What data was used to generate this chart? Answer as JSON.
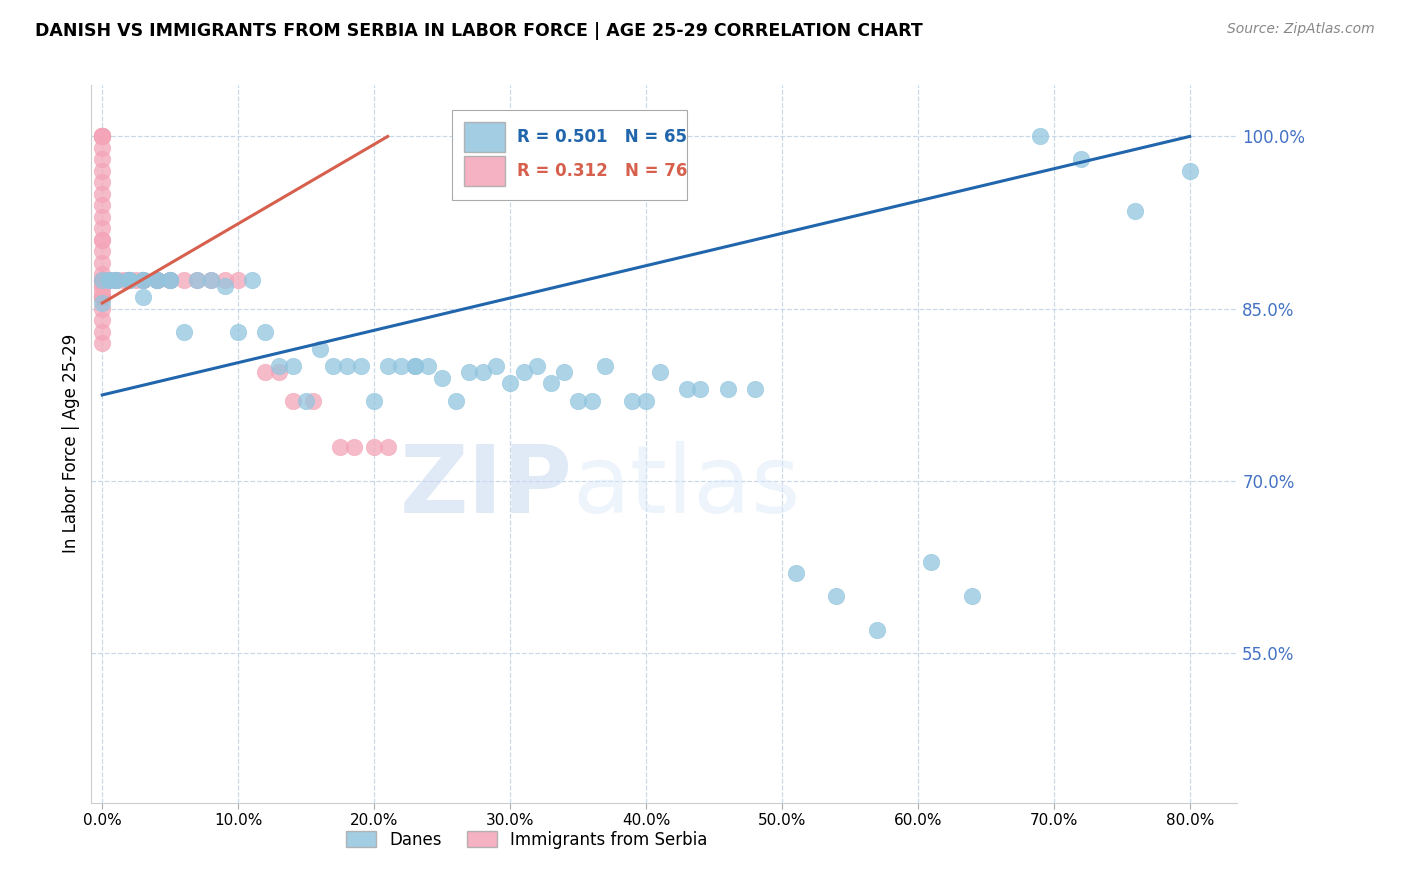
{
  "title": "DANISH VS IMMIGRANTS FROM SERBIA IN LABOR FORCE | AGE 25-29 CORRELATION CHART",
  "source": "Source: ZipAtlas.com",
  "ylabel": "In Labor Force | Age 25-29",
  "xlabel_ticks": [
    "0.0%",
    "10.0%",
    "20.0%",
    "30.0%",
    "40.0%",
    "50.0%",
    "60.0%",
    "70.0%",
    "80.0%"
  ],
  "xlabel_vals": [
    0.0,
    0.1,
    0.2,
    0.3,
    0.4,
    0.5,
    0.6,
    0.7,
    0.8
  ],
  "ytick_vals": [
    0.55,
    0.7,
    0.85,
    1.0
  ],
  "ytick_labels": [
    "55.0%",
    "70.0%",
    "85.0%",
    "100.0%"
  ],
  "ylim": [
    0.42,
    1.045
  ],
  "xlim": [
    -0.008,
    0.835
  ],
  "blue_color": "#92c5de",
  "pink_color": "#f4a5b8",
  "trend_blue": "#2166ac",
  "trend_pink": "#d6604d",
  "legend_R_blue": "0.501",
  "legend_N_blue": "65",
  "legend_R_pink": "0.312",
  "legend_N_pink": "76",
  "legend_label_blue": "Danes",
  "legend_label_pink": "Immigrants from Serbia",
  "watermark_zip": "ZIP",
  "watermark_atlas": "atlas",
  "danes_x": [
    0.0,
    0.0,
    0.005,
    0.005,
    0.01,
    0.01,
    0.02,
    0.02,
    0.02,
    0.03,
    0.03,
    0.03,
    0.04,
    0.04,
    0.05,
    0.05,
    0.06,
    0.07,
    0.08,
    0.09,
    0.1,
    0.11,
    0.12,
    0.13,
    0.14,
    0.15,
    0.16,
    0.17,
    0.18,
    0.19,
    0.2,
    0.21,
    0.22,
    0.23,
    0.23,
    0.24,
    0.25,
    0.26,
    0.27,
    0.28,
    0.29,
    0.3,
    0.31,
    0.32,
    0.33,
    0.34,
    0.35,
    0.36,
    0.37,
    0.39,
    0.4,
    0.41,
    0.43,
    0.44,
    0.46,
    0.48,
    0.51,
    0.54,
    0.57,
    0.61,
    0.64,
    0.69,
    0.72,
    0.76,
    0.8
  ],
  "danes_y": [
    0.855,
    0.875,
    0.875,
    0.875,
    0.875,
    0.875,
    0.875,
    0.875,
    0.875,
    0.875,
    0.86,
    0.875,
    0.875,
    0.875,
    0.875,
    0.875,
    0.83,
    0.875,
    0.875,
    0.87,
    0.83,
    0.875,
    0.83,
    0.8,
    0.8,
    0.77,
    0.815,
    0.8,
    0.8,
    0.8,
    0.77,
    0.8,
    0.8,
    0.8,
    0.8,
    0.8,
    0.79,
    0.77,
    0.795,
    0.795,
    0.8,
    0.785,
    0.795,
    0.8,
    0.785,
    0.795,
    0.77,
    0.77,
    0.8,
    0.77,
    0.77,
    0.795,
    0.78,
    0.78,
    0.78,
    0.78,
    0.62,
    0.6,
    0.57,
    0.63,
    0.6,
    1.0,
    0.98,
    0.935,
    0.97
  ],
  "serbia_x": [
    0.0,
    0.0,
    0.0,
    0.0,
    0.0,
    0.0,
    0.0,
    0.0,
    0.0,
    0.0,
    0.0,
    0.0,
    0.0,
    0.0,
    0.0,
    0.0,
    0.0,
    0.0,
    0.0,
    0.0,
    0.0,
    0.0,
    0.0,
    0.0,
    0.0,
    0.0,
    0.0,
    0.0,
    0.0,
    0.0,
    0.0,
    0.0,
    0.0,
    0.0,
    0.0,
    0.0,
    0.0,
    0.0,
    0.0,
    0.0,
    0.0,
    0.0,
    0.0,
    0.005,
    0.005,
    0.01,
    0.01,
    0.01,
    0.01,
    0.015,
    0.02,
    0.02,
    0.02,
    0.02,
    0.025,
    0.03,
    0.03,
    0.03,
    0.04,
    0.04,
    0.04,
    0.05,
    0.05,
    0.06,
    0.07,
    0.08,
    0.09,
    0.1,
    0.12,
    0.13,
    0.14,
    0.155,
    0.175,
    0.185,
    0.2,
    0.21
  ],
  "serbia_y": [
    1.0,
    1.0,
    1.0,
    1.0,
    1.0,
    1.0,
    1.0,
    1.0,
    1.0,
    1.0,
    1.0,
    1.0,
    1.0,
    0.99,
    0.98,
    0.97,
    0.96,
    0.95,
    0.94,
    0.93,
    0.92,
    0.91,
    0.91,
    0.9,
    0.89,
    0.88,
    0.87,
    0.86,
    0.85,
    0.84,
    0.83,
    0.82,
    0.875,
    0.87,
    0.875,
    0.875,
    0.875,
    0.875,
    0.865,
    0.86,
    0.86,
    0.86,
    0.86,
    0.875,
    0.875,
    0.875,
    0.875,
    0.875,
    0.875,
    0.875,
    0.875,
    0.875,
    0.875,
    0.875,
    0.875,
    0.875,
    0.875,
    0.875,
    0.875,
    0.875,
    0.875,
    0.875,
    0.875,
    0.875,
    0.875,
    0.875,
    0.875,
    0.875,
    0.795,
    0.795,
    0.77,
    0.77,
    0.73,
    0.73,
    0.73,
    0.73
  ],
  "dane_trend_x": [
    0.0,
    0.8
  ],
  "dane_trend_y": [
    0.775,
    1.0
  ],
  "serbia_trend_x": [
    0.0,
    0.21
  ],
  "serbia_trend_y": [
    0.855,
    1.0
  ]
}
